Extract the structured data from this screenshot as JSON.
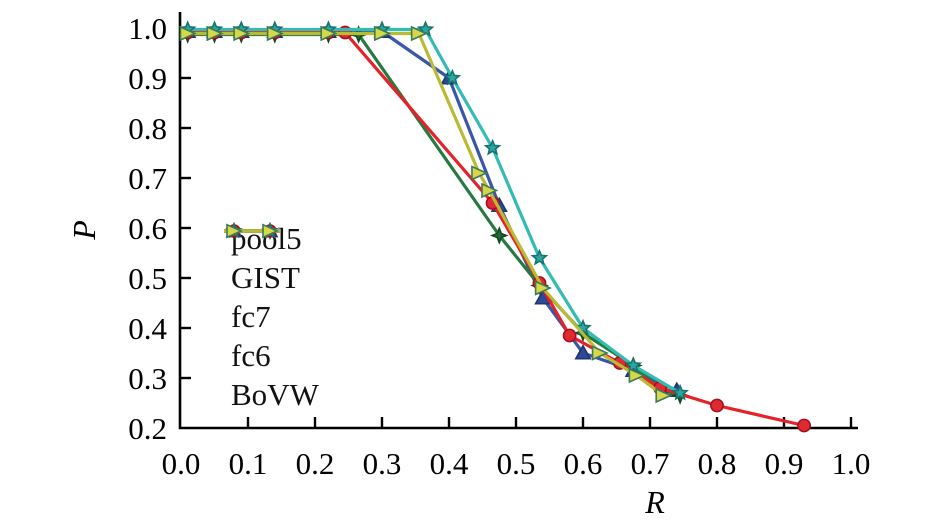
{
  "chart_data": {
    "type": "line",
    "title": "",
    "xlabel": "R",
    "ylabel": "P",
    "xlim": [
      0.0,
      1.0
    ],
    "ylim": [
      0.2,
      1.0
    ],
    "x_ticks": [
      "0.0",
      "0.1",
      "0.2",
      "0.3",
      "0.4",
      "0.5",
      "0.6",
      "0.7",
      "0.8",
      "0.9",
      "1.0"
    ],
    "y_ticks": [
      "0.2",
      "0.3",
      "0.4",
      "0.5",
      "0.6",
      "0.7",
      "0.8",
      "0.9",
      "1.0"
    ],
    "grid": false,
    "legend_position": "center-left",
    "axis_color": "#000000",
    "series": [
      {
        "name": "pool5",
        "color": "#3a57a7",
        "marker": "triangle-up",
        "marker_fill": "#2c4a94",
        "marker_edge": "#1d3570",
        "points": [
          [
            0.01,
            0.993
          ],
          [
            0.05,
            0.993
          ],
          [
            0.09,
            0.993
          ],
          [
            0.14,
            0.993
          ],
          [
            0.22,
            0.993
          ],
          [
            0.3,
            0.993
          ],
          [
            0.4,
            0.9
          ],
          [
            0.475,
            0.645
          ],
          [
            0.54,
            0.46
          ],
          [
            0.6,
            0.35
          ],
          [
            0.675,
            0.315
          ],
          [
            0.74,
            0.275
          ]
        ]
      },
      {
        "name": "GIST",
        "color": "#26793f",
        "marker": "star4",
        "marker_fill": "#1e6b38",
        "marker_edge": "#14491f",
        "points": [
          [
            0.01,
            0.987
          ],
          [
            0.05,
            0.987
          ],
          [
            0.09,
            0.987
          ],
          [
            0.14,
            0.987
          ],
          [
            0.22,
            0.987
          ],
          [
            0.265,
            0.987
          ],
          [
            0.475,
            0.585
          ],
          [
            0.535,
            0.485
          ],
          [
            0.6,
            0.39
          ],
          [
            0.675,
            0.325
          ],
          [
            0.72,
            0.275
          ],
          [
            0.745,
            0.265
          ]
        ]
      },
      {
        "name": "fc7",
        "color": "#e62129",
        "marker": "circle",
        "marker_fill": "#dd2a33",
        "marker_edge": "#a80f1c",
        "points": [
          [
            0.01,
            0.991
          ],
          [
            0.05,
            0.991
          ],
          [
            0.09,
            0.991
          ],
          [
            0.14,
            0.991
          ],
          [
            0.22,
            0.991
          ],
          [
            0.245,
            0.991
          ],
          [
            0.465,
            0.65
          ],
          [
            0.535,
            0.49
          ],
          [
            0.58,
            0.385
          ],
          [
            0.655,
            0.33
          ],
          [
            0.715,
            0.28
          ],
          [
            0.8,
            0.245
          ],
          [
            0.93,
            0.205
          ]
        ]
      },
      {
        "name": "fc6",
        "color": "#33bcb4",
        "marker": "star5",
        "marker_fill": "#2aa8a0",
        "marker_edge": "#17736d",
        "points": [
          [
            0.01,
            0.997
          ],
          [
            0.05,
            0.997
          ],
          [
            0.09,
            0.997
          ],
          [
            0.14,
            0.997
          ],
          [
            0.22,
            0.997
          ],
          [
            0.3,
            0.997
          ],
          [
            0.365,
            0.997
          ],
          [
            0.405,
            0.9
          ],
          [
            0.465,
            0.76
          ],
          [
            0.535,
            0.54
          ],
          [
            0.6,
            0.4
          ],
          [
            0.675,
            0.325
          ],
          [
            0.745,
            0.27
          ]
        ]
      },
      {
        "name": "BoVW",
        "color": "#b9bb35",
        "marker": "triangle-right",
        "marker_fill": "#d6d848",
        "marker_edge": "#3c7a5a",
        "points": [
          [
            0.01,
            0.989
          ],
          [
            0.05,
            0.989
          ],
          [
            0.09,
            0.989
          ],
          [
            0.14,
            0.989
          ],
          [
            0.22,
            0.989
          ],
          [
            0.3,
            0.989
          ],
          [
            0.355,
            0.989
          ],
          [
            0.445,
            0.71
          ],
          [
            0.46,
            0.675
          ],
          [
            0.54,
            0.48
          ],
          [
            0.625,
            0.35
          ],
          [
            0.68,
            0.305
          ],
          [
            0.72,
            0.265
          ]
        ]
      }
    ]
  }
}
